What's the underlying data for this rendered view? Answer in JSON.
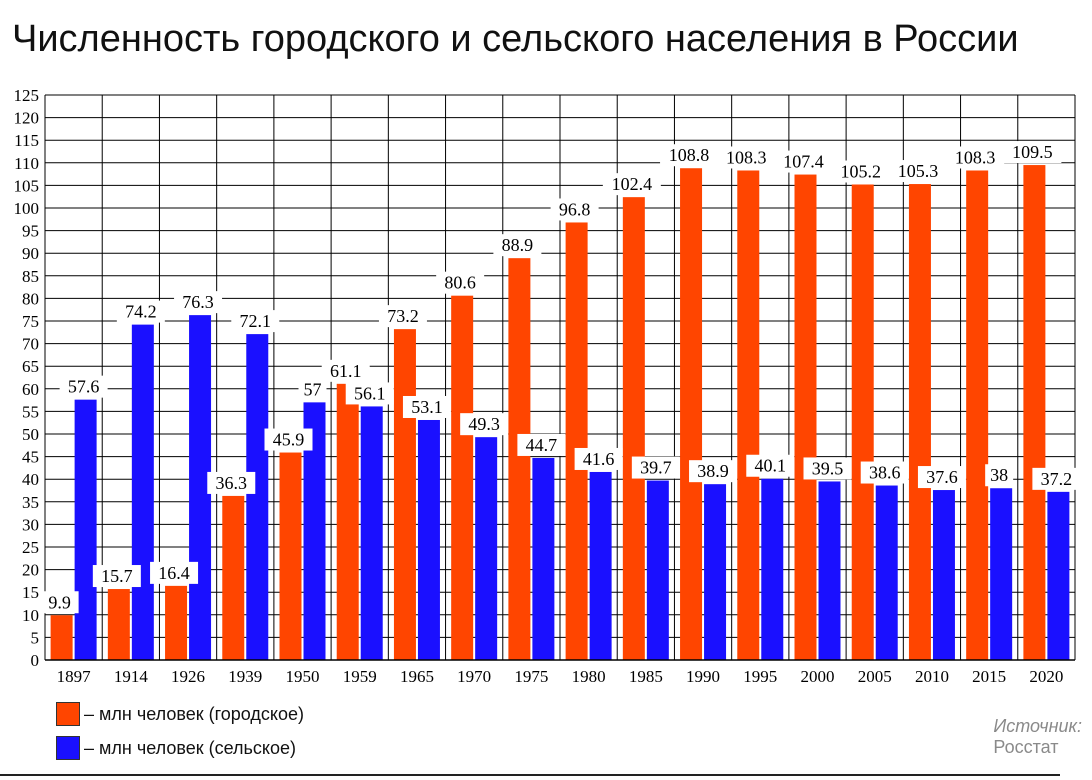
{
  "title": "Численность городского и сельского населения в России",
  "legend": {
    "urban": "– млн человек (городское)",
    "rural": "– млн человек (сельское)"
  },
  "source": {
    "label": "Источник:",
    "value": "Росстат"
  },
  "colors": {
    "urban": "#ff4500",
    "rural": "#1a10ff",
    "grid": "#000000",
    "source_text": "#8a8a8a"
  },
  "chart_data": {
    "type": "bar",
    "title": "Численность городского и сельского населения в России",
    "xlabel": "",
    "ylabel": "",
    "ylim": [
      0,
      125
    ],
    "ytick_step": 5,
    "grid": true,
    "legend_position": "bottom-left",
    "categories": [
      "1897",
      "1914",
      "1926",
      "1939",
      "1950",
      "1959",
      "1965",
      "1970",
      "1975",
      "1980",
      "1985",
      "1990",
      "1995",
      "2000",
      "2005",
      "2010",
      "2015",
      "2020"
    ],
    "series": [
      {
        "name": "– млн человек (городское)",
        "key": "urban",
        "values": [
          9.9,
          15.7,
          16.4,
          36.3,
          45.9,
          61.1,
          73.2,
          80.6,
          88.9,
          96.8,
          102.4,
          108.8,
          108.3,
          107.4,
          105.2,
          105.3,
          108.3,
          109.5
        ],
        "labels": [
          "9.9",
          "15.7",
          "16.4",
          "36.3",
          "45.9",
          "61.1",
          "73.2",
          "80.6",
          "88.9",
          "96.8",
          "102.4",
          "108.8",
          "108.3",
          "107.4",
          "105.2",
          "105.3",
          "108.3",
          "109.5"
        ]
      },
      {
        "name": "– млн человек (сельское)",
        "key": "rural",
        "values": [
          57.6,
          74.2,
          76.3,
          72.1,
          57,
          56.1,
          53.1,
          49.3,
          44.7,
          41.6,
          39.7,
          38.9,
          40.1,
          39.5,
          38.6,
          37.6,
          38,
          37.2
        ],
        "labels": [
          "57.6",
          "74.2",
          "76.3",
          "72.1",
          "57",
          "56.1",
          "53.1",
          "49.3",
          "44.7",
          "41.6",
          "39.7",
          "38.9",
          "40.1",
          "39.5",
          "38.6",
          "37.6",
          "38",
          "37.2"
        ]
      }
    ]
  }
}
